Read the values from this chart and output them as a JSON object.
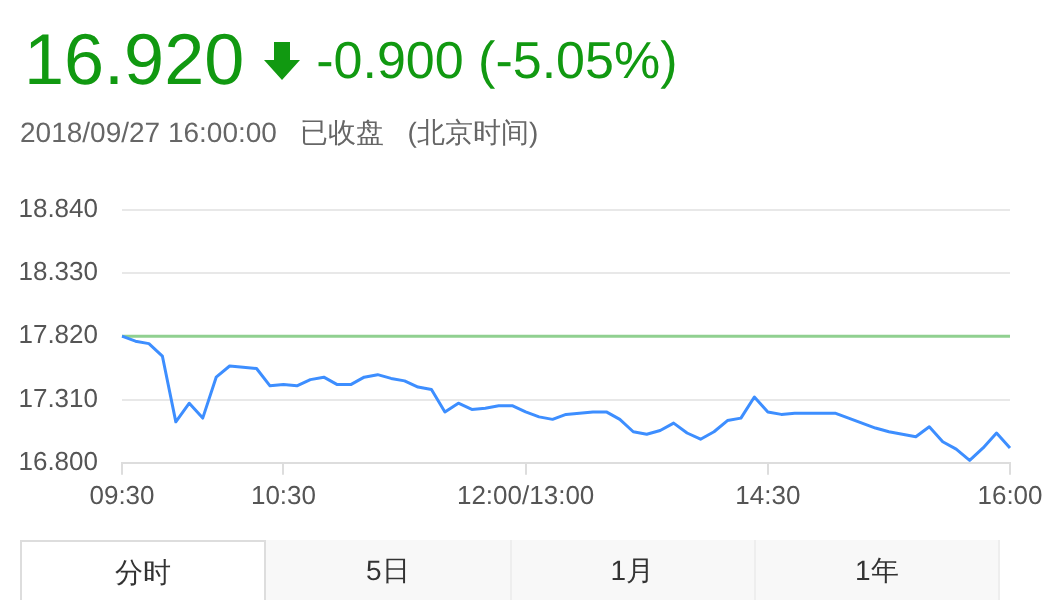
{
  "chart_data": {
    "type": "line",
    "title": "16.920",
    "subtitle": "2018/09/27 16:00:00",
    "annotations": [
      "-0.900 (-5.05%)",
      "已收盘",
      "(北京时间)",
      "分时",
      "5日",
      "1月",
      "1年"
    ],
    "categories": [
      "09:30",
      null,
      null,
      null,
      null,
      null,
      null,
      null,
      null,
      null,
      null,
      null,
      "10:30",
      null,
      null,
      null,
      null,
      null,
      null,
      null,
      null,
      null,
      null,
      null,
      null,
      null,
      null,
      null,
      null,
      null,
      "12:00/13:00",
      null,
      null,
      null,
      null,
      null,
      null,
      null,
      null,
      null,
      null,
      null,
      null,
      null,
      null,
      null,
      null,
      null,
      "14:30",
      null,
      null,
      null,
      null,
      null,
      null,
      null,
      null,
      null,
      null,
      null,
      null,
      null,
      null,
      null,
      null,
      null,
      "16:00"
    ],
    "series": [
      {
        "color": "#3d8eff",
        "values": [
          17.82,
          17.78,
          17.76,
          17.66,
          17.13,
          17.28,
          17.16,
          17.49,
          17.58,
          17.57,
          17.56,
          17.42,
          17.43,
          17.42,
          17.47,
          17.49,
          17.43,
          17.43,
          17.49,
          17.51,
          17.48,
          17.46,
          17.41,
          17.39,
          17.21,
          17.28,
          17.23,
          17.24,
          17.26,
          17.26,
          17.21,
          17.17,
          17.15,
          17.19,
          17.2,
          17.21,
          17.21,
          17.15,
          17.05,
          17.03,
          17.06,
          17.12,
          17.04,
          16.99,
          17.05,
          17.14,
          17.16,
          17.33,
          17.21,
          17.19,
          17.2,
          17.2,
          17.2,
          17.2,
          17.16,
          17.12,
          17.08,
          17.05,
          17.03,
          17.01,
          17.09,
          16.97,
          16.91,
          16.82,
          16.92,
          17.04,
          16.92
        ]
      }
    ],
    "ylim": [
      16.8,
      18.84
    ],
    "yticks": [
      {
        "value": 16.8,
        "label": "16.800"
      },
      {
        "value": 17.31,
        "label": "17.310"
      },
      {
        "value": 17.82,
        "label": "17.820"
      },
      {
        "value": 18.33,
        "label": "18.330"
      },
      {
        "value": 18.84,
        "label": "18.840"
      }
    ],
    "ref_lines": [
      {
        "axis": "y",
        "value": 17.82,
        "color": "#90d090"
      }
    ],
    "grid": "y",
    "legend": false,
    "marker": "none",
    "line_style": "solid"
  }
}
